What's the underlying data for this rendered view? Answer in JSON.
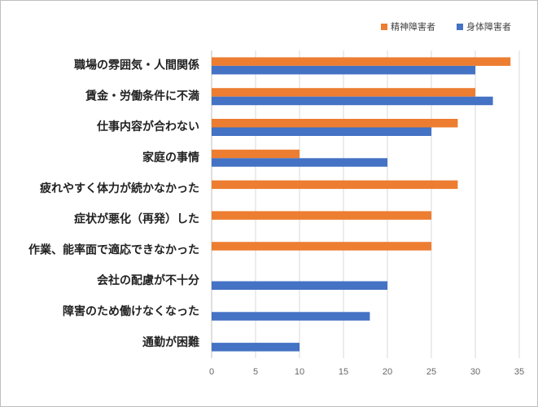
{
  "chart_data": {
    "type": "hbar",
    "categories": [
      "職場の雰囲気・人間関係",
      "賃金・労働条件に不満",
      "仕事内容が合わない",
      "家庭の事情",
      "疲れやすく体力が続かなかった",
      "症状が悪化（再発）した",
      "作業、能率面で適応できなかった",
      "会社の配慮が不十分",
      "障害のため働けなくなった",
      "通勤が困難"
    ],
    "series": [
      {
        "name": "精神障害者",
        "color": "#ed7d31",
        "values": [
          34,
          30,
          28,
          10,
          28,
          25,
          25,
          null,
          null,
          null
        ]
      },
      {
        "name": "身体障害者",
        "color": "#4472c4",
        "values": [
          30,
          32,
          25,
          20,
          null,
          null,
          null,
          20,
          18,
          10
        ]
      }
    ],
    "xlim": [
      0,
      35
    ],
    "xticks": [
      0,
      5,
      10,
      15,
      20,
      25,
      30,
      35
    ],
    "grid": true
  }
}
